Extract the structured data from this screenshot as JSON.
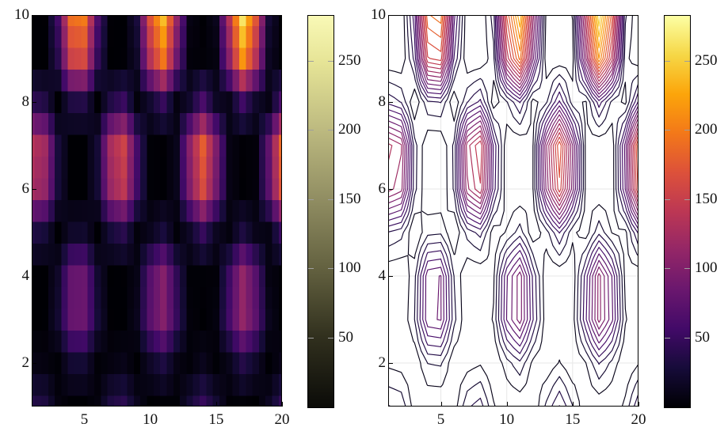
{
  "figure": {
    "type": "dual-panel scientific plot",
    "background": "#ffffff"
  },
  "chart_data": [
    {
      "id": "heatmap",
      "type": "heatmap",
      "title": "",
      "xlabel": "",
      "ylabel": "",
      "x_range": [
        1,
        20
      ],
      "y_range": [
        1,
        10
      ],
      "x_ticks": [
        5,
        10,
        15,
        20
      ],
      "y_ticks": [
        2,
        4,
        6,
        8,
        10
      ],
      "value_range": [
        0,
        283
      ],
      "cell_colormap": "inferno",
      "colorbar": {
        "ticks": [
          50,
          100,
          150,
          200,
          250
        ],
        "colormap": "black-olive-paleyellow",
        "stops": [
          [
            0,
            "#0b0b08"
          ],
          [
            0.18,
            "#31301e"
          ],
          [
            0.35,
            "#62603f"
          ],
          [
            0.53,
            "#908d62"
          ],
          [
            0.71,
            "#bdba80"
          ],
          [
            0.88,
            "#e6e496"
          ],
          [
            1,
            "#f9f9b6"
          ]
        ]
      },
      "values": [
        [
          36.9,
          32.6,
          6.0,
          0.5,
          0.6,
          5.3,
          33.7,
          42.1,
          13.7,
          0.0,
          1.5,
          1.7,
          26.8,
          48.7,
          24.6,
          0.9,
          2.0,
          0.1,
          15.8,
          46.4
        ],
        [
          8.9,
          6.4,
          1.6,
          24.3,
          25.8,
          2.4,
          6.2,
          10.5,
          0.0,
          18.8,
          32.9,
          8.4,
          2.6,
          12.9,
          1.5,
          11.6,
          37.0,
          20.3,
          0.3,
          11.1
        ],
        [
          0.0,
          0.4,
          24.0,
          81.4,
          85.0,
          27.9,
          0.7,
          0.0,
          13.5,
          72.7,
          102.4,
          48.5,
          3.8,
          0.1,
          5.7,
          58.1,
          112.8,
          74.7,
          13.4,
          0.0
        ],
        [
          0.6,
          0.0,
          20.0,
          80.6,
          84.5,
          23.7,
          0.0,
          0.8,
          9.6,
          70.5,
          102.8,
          44.6,
          1.4,
          1.6,
          2.8,
          53.6,
          112.7,
          71.1,
          7.6,
          1.5
        ],
        [
          35.0,
          28.4,
          0.1,
          20.2,
          21.9,
          0.0,
          28.6,
          40.5,
          4.3,
          13.2,
          29.9,
          2.8,
          18.4,
          48.7,
          14.8,
          5.3,
          32.8,
          11.2,
          8.0,
          50.7
        ],
        [
          125.1,
          112.3,
          28.1,
          0.0,
          0.0,
          25.8,
          116.8,
          142.3,
          54.5,
          1.8,
          0.4,
          12.1,
          98.1,
          164.1,
          90.0,
          8.9,
          0.5,
          3.6,
          72.8,
          172.7
        ],
        [
          136.1,
          121.9,
          29.4,
          0.0,
          0.0,
          26.9,
          126.7,
          155.0,
          58.1,
          1.5,
          0.7,
          12.1,
          106.0,
          178.8,
          97.0,
          8.6,
          1.0,
          3.3,
          76.9,
          187.1
        ],
        [
          44.2,
          35.2,
          0.0,
          33.8,
          36.5,
          0.2,
          35.3,
          51.1,
          4.1,
          22.9,
          48.9,
          6.2,
          21.8,
          61.9,
          16.9,
          10.4,
          54.6,
          20.2,
          8.4,
          62.4
        ],
        [
          0.6,
          0.0,
          40.0,
          154.6,
          162.0,
          47.4,
          0.1,
          0.9,
          20.0,
          135.9,
          196.4,
          87.0,
          3.6,
          2.0,
          6.6,
          106.0,
          216.4,
          137.1,
          16.3,
          1.6
        ],
        [
          0.0,
          0.7,
          55.1,
          190.5,
          199.1,
          64.2,
          1.2,
          0.0,
          30.4,
          169.6,
          240.1,
          112.6,
          8.1,
          0.4,
          12.7,
          135.5,
          264.2,
          172.4,
          26.0,
          0.2
        ]
      ]
    },
    {
      "id": "contour",
      "type": "contour",
      "title": "",
      "xlabel": "",
      "ylabel": "",
      "x_range": [
        1,
        20
      ],
      "y_range": [
        1,
        10
      ],
      "x_ticks": [
        5,
        10,
        15,
        20
      ],
      "y_ticks": [
        2,
        4,
        6,
        8,
        10
      ],
      "value_range": [
        0,
        283
      ],
      "values_source": "heatmap",
      "levels": [
        12,
        24,
        36,
        48,
        60,
        72,
        84,
        96,
        108,
        120,
        132,
        144,
        156,
        168,
        180,
        192,
        204,
        216,
        228,
        240,
        252
      ],
      "grid_on": true,
      "colorbar": {
        "ticks": [
          50,
          100,
          150,
          200,
          250
        ],
        "colormap": "inferno",
        "stops": [
          [
            0,
            "#000004"
          ],
          [
            0.1,
            "#160b39"
          ],
          [
            0.2,
            "#420a68"
          ],
          [
            0.3,
            "#6a176e"
          ],
          [
            0.4,
            "#932667"
          ],
          [
            0.5,
            "#bc3754"
          ],
          [
            0.6,
            "#dd513a"
          ],
          [
            0.7,
            "#f37819"
          ],
          [
            0.8,
            "#fca50a"
          ],
          [
            0.9,
            "#f6d746"
          ],
          [
            1,
            "#fcffa4"
          ]
        ]
      }
    }
  ],
  "colors": {
    "axis": "#000000",
    "grid_line": "#e7e7e7",
    "tick_label": "#111111",
    "colorbar_tick_mark": "#9e9e9e",
    "inferno_stops": [
      [
        0,
        "#000004"
      ],
      [
        0.1,
        "#160b39"
      ],
      [
        0.2,
        "#420a68"
      ],
      [
        0.3,
        "#6a176e"
      ],
      [
        0.4,
        "#932667"
      ],
      [
        0.5,
        "#bc3754"
      ],
      [
        0.6,
        "#dd513a"
      ],
      [
        0.7,
        "#f37819"
      ],
      [
        0.8,
        "#fca50a"
      ],
      [
        0.9,
        "#f6d746"
      ],
      [
        1,
        "#fcffa4"
      ]
    ]
  }
}
